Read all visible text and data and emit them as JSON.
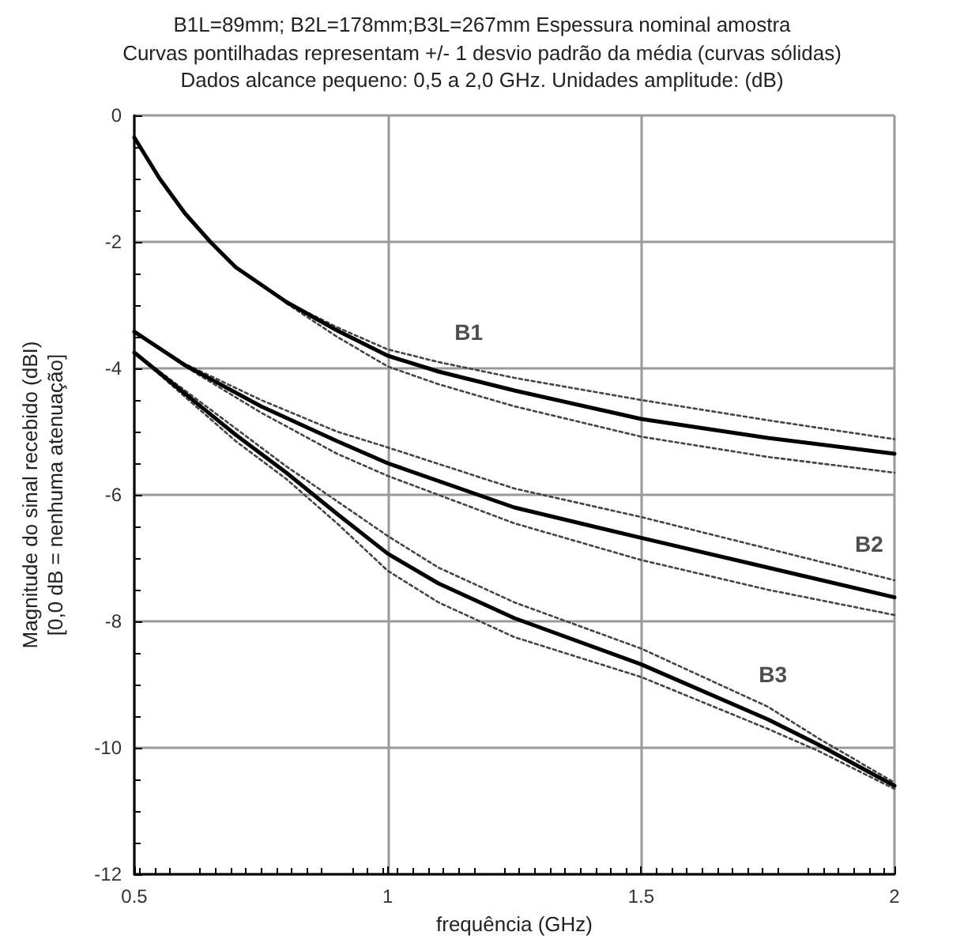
{
  "chart_data": {
    "type": "line",
    "title": "B1L=89mm; B2L=178mm;B3L=267mm Espessura nominal amostra",
    "subtitle": "Curvas pontilhadas representam +/- 1 desvio padrão da média (curvas sólidas)\nDados alcance pequeno: 0,5 a 2,0 GHz. Unidades amplitude: (dB)",
    "xlabel": "frequência (GHz)",
    "ylabel": "Magnitude do sinal recebido (dBI)\n[0,0 dB = nenhuma atenuação]",
    "xlim": [
      0.5,
      2
    ],
    "xticks": [
      0.5,
      1,
      1.5,
      2
    ],
    "ylim": [
      -12,
      0
    ],
    "yticks": [
      -12,
      -10,
      -8,
      -6,
      -4,
      -2,
      0
    ],
    "grid": true,
    "marker": "none",
    "line_style": "solid",
    "annotations": [
      {
        "text": "B1",
        "x": 1.16,
        "y": -4.17
      },
      {
        "text": "B2",
        "x": 1.95,
        "y": -7.53
      },
      {
        "text": "B3",
        "x": 1.76,
        "y": -9.59
      }
    ],
    "series": [
      {
        "color": "#000000",
        "x": [
          0.5,
          0.55,
          0.6,
          0.65,
          0.7,
          0.8,
          0.9,
          1,
          1.1,
          1.25,
          1.5,
          1.75,
          2
        ],
        "values": [
          -0.35,
          -1.0,
          -1.55,
          -2.0,
          -2.4,
          -2.95,
          -3.4,
          -3.8,
          -4.05,
          -4.35,
          -4.8,
          -5.1,
          -5.35
        ]
      },
      {
        "color": "#444444",
        "line_style": "dotted",
        "x": [
          0.8,
          0.9,
          1,
          1.1,
          1.25,
          1.5,
          1.75,
          2
        ],
        "values": [
          -2.95,
          -3.35,
          -3.7,
          -3.9,
          -4.15,
          -4.5,
          -4.82,
          -5.12
        ]
      },
      {
        "color": "#444444",
        "line_style": "dotted",
        "x": [
          0.8,
          0.9,
          1,
          1.1,
          1.25,
          1.5,
          1.75,
          2
        ],
        "values": [
          -2.97,
          -3.5,
          -3.97,
          -4.25,
          -4.6,
          -5.08,
          -5.4,
          -5.65
        ]
      },
      {
        "color": "#000000",
        "x": [
          0.5,
          0.6,
          0.75,
          0.9,
          1,
          1.25,
          1.5,
          1.75,
          2
        ],
        "values": [
          -3.42,
          -3.95,
          -4.6,
          -5.15,
          -5.5,
          -6.2,
          -6.68,
          -7.15,
          -7.62
        ]
      },
      {
        "color": "#444444",
        "line_style": "dotted",
        "x": [
          0.5,
          0.6,
          0.75,
          0.9,
          1,
          1.25,
          1.5,
          1.75,
          2
        ],
        "values": [
          -3.42,
          -3.93,
          -4.5,
          -5.0,
          -5.25,
          -5.9,
          -6.35,
          -6.85,
          -7.35
        ]
      },
      {
        "color": "#444444",
        "line_style": "dotted",
        "x": [
          0.5,
          0.6,
          0.75,
          0.9,
          1,
          1.25,
          1.5,
          1.75,
          2
        ],
        "values": [
          -3.42,
          -3.97,
          -4.7,
          -5.35,
          -5.7,
          -6.45,
          -7.03,
          -7.5,
          -7.9
        ]
      },
      {
        "color": "#000000",
        "x": [
          0.5,
          0.6,
          0.7,
          0.8,
          0.9,
          1,
          1.1,
          1.25,
          1.5,
          1.75,
          1.85,
          2
        ],
        "values": [
          -3.75,
          -4.4,
          -5.05,
          -5.65,
          -6.3,
          -6.93,
          -7.4,
          -7.95,
          -8.68,
          -9.55,
          -9.95,
          -10.6
        ]
      },
      {
        "color": "#444444",
        "line_style": "dotted",
        "x": [
          0.5,
          0.6,
          0.7,
          0.8,
          0.9,
          1,
          1.1,
          1.25,
          1.5,
          1.75,
          1.85,
          2
        ],
        "values": [
          -3.75,
          -4.35,
          -4.95,
          -5.55,
          -6.1,
          -6.65,
          -7.15,
          -7.7,
          -8.43,
          -9.35,
          -9.85,
          -10.55
        ]
      },
      {
        "color": "#444444",
        "line_style": "dotted",
        "x": [
          0.5,
          0.6,
          0.7,
          0.8,
          0.9,
          1,
          1.1,
          1.25,
          1.5,
          1.75,
          1.85,
          2
        ],
        "values": [
          -3.75,
          -4.45,
          -5.15,
          -5.75,
          -6.45,
          -7.2,
          -7.7,
          -8.25,
          -8.88,
          -9.7,
          -10.05,
          -10.65
        ]
      }
    ]
  }
}
